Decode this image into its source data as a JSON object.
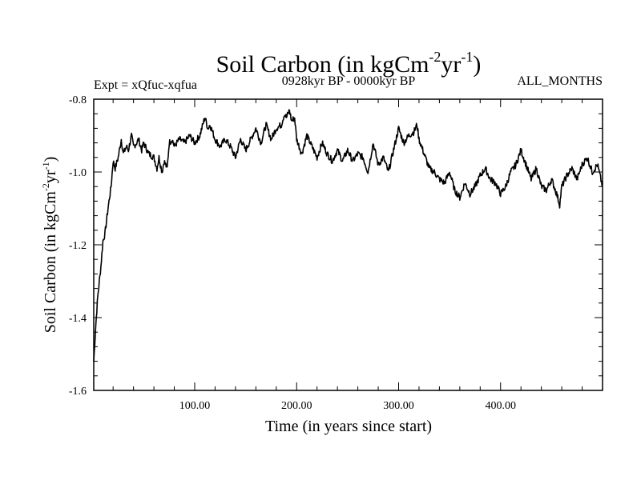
{
  "chart_data": {
    "type": "line",
    "title": "Soil Carbon (in kgCm",
    "title_exp1": "-2",
    "title_mid": "yr",
    "title_exp2": "-1",
    "title_close": ")",
    "left_subtitle": "Expt = xQfuc-xqfua",
    "center_subtitle": "0928kyr BP - 0000kyr BP",
    "right_subtitle": "ALL_MONTHS",
    "xlabel": "Time (in years since start)",
    "ylabel_main": "Soil Carbon (in kgCm",
    "ylabel_exp1": "-2",
    "ylabel_mid": "yr",
    "ylabel_exp2": "-1",
    "ylabel_close": ")",
    "xlim": [
      1,
      500
    ],
    "ylim": [
      -1.6,
      -0.8
    ],
    "x_ticks": [
      100,
      200,
      300,
      400
    ],
    "x_tick_labels": [
      "100.00",
      "200.00",
      "300.00",
      "400.00"
    ],
    "y_ticks": [
      -1.6,
      -1.4,
      -1.2,
      -1.0,
      -0.8
    ],
    "y_tick_labels": [
      "-1.6",
      "-1.4",
      "-1.2",
      "-1.0",
      "-0.8"
    ],
    "series": [
      {
        "name": "Soil Carbon",
        "x": [
          1,
          3,
          5,
          8,
          10,
          12,
          15,
          18,
          20,
          22,
          25,
          28,
          30,
          33,
          35,
          38,
          40,
          43,
          45,
          48,
          50,
          55,
          60,
          63,
          65,
          68,
          70,
          73,
          75,
          78,
          80,
          85,
          90,
          95,
          100,
          105,
          108,
          110,
          113,
          115,
          120,
          125,
          130,
          135,
          140,
          145,
          150,
          155,
          160,
          165,
          170,
          175,
          180,
          185,
          188,
          190,
          193,
          195,
          198,
          200,
          205,
          210,
          215,
          220,
          225,
          230,
          235,
          240,
          245,
          250,
          255,
          260,
          265,
          270,
          275,
          280,
          285,
          290,
          295,
          300,
          305,
          310,
          315,
          318,
          320,
          325,
          330,
          335,
          340,
          345,
          350,
          355,
          360,
          365,
          370,
          375,
          380,
          385,
          390,
          395,
          400,
          405,
          410,
          415,
          420,
          425,
          430,
          435,
          440,
          445,
          450,
          455,
          458,
          460,
          465,
          470,
          475,
          480,
          485,
          490,
          495,
          500
        ],
        "values": [
          -1.52,
          -1.42,
          -1.34,
          -1.26,
          -1.19,
          -1.17,
          -1.1,
          -1.04,
          -0.97,
          -0.99,
          -0.96,
          -0.91,
          -0.95,
          -0.93,
          -0.94,
          -0.9,
          -0.93,
          -0.92,
          -0.91,
          -0.94,
          -0.92,
          -0.95,
          -0.96,
          -0.99,
          -0.96,
          -1.0,
          -0.97,
          -0.99,
          -0.92,
          -0.91,
          -0.93,
          -0.91,
          -0.92,
          -0.9,
          -0.92,
          -0.9,
          -0.87,
          -0.85,
          -0.88,
          -0.87,
          -0.91,
          -0.93,
          -0.91,
          -0.93,
          -0.96,
          -0.91,
          -0.94,
          -0.91,
          -0.88,
          -0.92,
          -0.87,
          -0.91,
          -0.88,
          -0.87,
          -0.84,
          -0.85,
          -0.83,
          -0.86,
          -0.85,
          -0.91,
          -0.95,
          -0.9,
          -0.93,
          -0.96,
          -0.92,
          -0.95,
          -0.97,
          -0.94,
          -0.97,
          -0.94,
          -0.97,
          -0.95,
          -0.96,
          -1.0,
          -0.92,
          -0.98,
          -0.96,
          -1.0,
          -0.94,
          -0.88,
          -0.92,
          -0.9,
          -0.89,
          -0.87,
          -0.91,
          -0.95,
          -0.99,
          -1.0,
          -1.02,
          -1.03,
          -1.0,
          -1.05,
          -1.07,
          -1.03,
          -1.06,
          -1.04,
          -1.01,
          -0.99,
          -1.02,
          -1.03,
          -1.06,
          -1.04,
          -1.0,
          -0.98,
          -0.94,
          -0.98,
          -1.02,
          -0.99,
          -1.04,
          -1.05,
          -1.02,
          -1.06,
          -1.09,
          -1.04,
          -1.01,
          -0.99,
          -1.02,
          -0.98,
          -0.96,
          -1.0,
          -0.98,
          -1.04
        ]
      }
    ]
  }
}
